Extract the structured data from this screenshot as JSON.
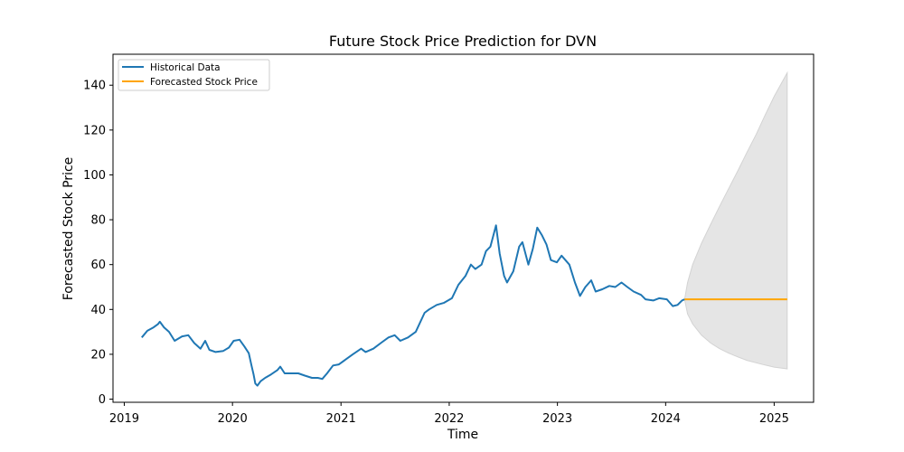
{
  "chart_data": {
    "type": "line",
    "title": "Future Stock Price Prediction for DVN",
    "xlabel": "Time",
    "ylabel": "Forecasted Stock Price",
    "xlim": [
      "2018-11-24",
      "2025-05-14"
    ],
    "ylim": [
      -1.4,
      153.8
    ],
    "x_ticks": [
      "2019",
      "2020",
      "2021",
      "2022",
      "2023",
      "2024",
      "2025"
    ],
    "y_ticks": [
      0,
      20,
      40,
      60,
      80,
      100,
      120,
      140
    ],
    "grid": false,
    "legend_position": "top-left",
    "series": [
      {
        "name": "Historical Data",
        "color": "#1f77b4",
        "points": [
          [
            "2019-03-01",
            27.5
          ],
          [
            "2019-03-20",
            30.5
          ],
          [
            "2019-04-10",
            32
          ],
          [
            "2019-04-25",
            33.5
          ],
          [
            "2019-05-01",
            34.5
          ],
          [
            "2019-05-15",
            32
          ],
          [
            "2019-06-01",
            30
          ],
          [
            "2019-06-20",
            26
          ],
          [
            "2019-07-15",
            28
          ],
          [
            "2019-08-05",
            28.5
          ],
          [
            "2019-08-25",
            25
          ],
          [
            "2019-09-15",
            22.5
          ],
          [
            "2019-10-01",
            26
          ],
          [
            "2019-10-15",
            22
          ],
          [
            "2019-11-05",
            21
          ],
          [
            "2019-12-01",
            21.5
          ],
          [
            "2019-12-20",
            23
          ],
          [
            "2020-01-05",
            26
          ],
          [
            "2020-01-25",
            26.5
          ],
          [
            "2020-02-10",
            23.5
          ],
          [
            "2020-02-25",
            20.5
          ],
          [
            "2020-03-05",
            15
          ],
          [
            "2020-03-12",
            11
          ],
          [
            "2020-03-18",
            7
          ],
          [
            "2020-03-25",
            6
          ],
          [
            "2020-04-05",
            8
          ],
          [
            "2020-04-20",
            9.5
          ],
          [
            "2020-05-10",
            11
          ],
          [
            "2020-06-01",
            13
          ],
          [
            "2020-06-10",
            14.5
          ],
          [
            "2020-06-25",
            11.5
          ],
          [
            "2020-07-20",
            11.5
          ],
          [
            "2020-08-10",
            11.5
          ],
          [
            "2020-09-01",
            10.5
          ],
          [
            "2020-09-25",
            9.5
          ],
          [
            "2020-10-15",
            9.5
          ],
          [
            "2020-10-30",
            9
          ],
          [
            "2020-11-15",
            11.5
          ],
          [
            "2020-12-05",
            15
          ],
          [
            "2020-12-25",
            15.5
          ],
          [
            "2021-01-15",
            17.5
          ],
          [
            "2021-02-10",
            20
          ],
          [
            "2021-03-10",
            22.5
          ],
          [
            "2021-03-25",
            21
          ],
          [
            "2021-04-20",
            22.5
          ],
          [
            "2021-05-15",
            25
          ],
          [
            "2021-06-10",
            27.5
          ],
          [
            "2021-07-01",
            28.5
          ],
          [
            "2021-07-20",
            26
          ],
          [
            "2021-08-15",
            27.5
          ],
          [
            "2021-09-10",
            30
          ],
          [
            "2021-10-10",
            38.5
          ],
          [
            "2021-10-25",
            40
          ],
          [
            "2021-11-20",
            42
          ],
          [
            "2021-12-15",
            43
          ],
          [
            "2022-01-10",
            45
          ],
          [
            "2022-02-01",
            51
          ],
          [
            "2022-02-25",
            55
          ],
          [
            "2022-03-15",
            60
          ],
          [
            "2022-03-30",
            58
          ],
          [
            "2022-04-20",
            60
          ],
          [
            "2022-05-05",
            66
          ],
          [
            "2022-05-20",
            68
          ],
          [
            "2022-06-01",
            74
          ],
          [
            "2022-06-08",
            77.5
          ],
          [
            "2022-06-20",
            65
          ],
          [
            "2022-07-05",
            55
          ],
          [
            "2022-07-15",
            52
          ],
          [
            "2022-08-05",
            57
          ],
          [
            "2022-08-25",
            68
          ],
          [
            "2022-09-05",
            70
          ],
          [
            "2022-09-25",
            60
          ],
          [
            "2022-10-10",
            67
          ],
          [
            "2022-10-25",
            76.5
          ],
          [
            "2022-11-10",
            73
          ],
          [
            "2022-11-25",
            69
          ],
          [
            "2022-12-10",
            62
          ],
          [
            "2022-12-30",
            61
          ],
          [
            "2023-01-15",
            64
          ],
          [
            "2023-02-10",
            60
          ],
          [
            "2023-03-01",
            52
          ],
          [
            "2023-03-18",
            46
          ],
          [
            "2023-04-05",
            50
          ],
          [
            "2023-04-25",
            53
          ],
          [
            "2023-05-10",
            48
          ],
          [
            "2023-06-01",
            49
          ],
          [
            "2023-06-25",
            50.5
          ],
          [
            "2023-07-15",
            50
          ],
          [
            "2023-08-05",
            52
          ],
          [
            "2023-08-25",
            50
          ],
          [
            "2023-09-15",
            48
          ],
          [
            "2023-10-10",
            46.5
          ],
          [
            "2023-10-25",
            44.5
          ],
          [
            "2023-11-20",
            44
          ],
          [
            "2023-12-10",
            45
          ],
          [
            "2024-01-05",
            44.5
          ],
          [
            "2024-01-25",
            41.5
          ],
          [
            "2024-02-10",
            42
          ],
          [
            "2024-02-25",
            44
          ],
          [
            "2024-03-05",
            44.5
          ]
        ]
      },
      {
        "name": "Forecasted Stock Price",
        "color": "#ffa500",
        "points": [
          [
            "2024-03-05",
            44.5
          ],
          [
            "2025-02-14",
            44.5
          ]
        ]
      }
    ],
    "confidence_band": {
      "color": "#d3d3d3",
      "lower": [
        [
          "2024-03-05",
          44.5
        ],
        [
          "2024-03-15",
          38
        ],
        [
          "2024-04-01",
          33.5
        ],
        [
          "2024-05-01",
          28.5
        ],
        [
          "2024-06-01",
          25
        ],
        [
          "2024-07-01",
          22.5
        ],
        [
          "2024-08-01",
          20.5
        ],
        [
          "2024-09-01",
          18.8
        ],
        [
          "2024-10-01",
          17.3
        ],
        [
          "2024-11-01",
          16.2
        ],
        [
          "2024-12-01",
          15.2
        ],
        [
          "2025-01-01",
          14.3
        ],
        [
          "2025-02-14",
          13.5
        ]
      ],
      "upper": [
        [
          "2024-03-05",
          44.5
        ],
        [
          "2024-03-15",
          52
        ],
        [
          "2024-04-01",
          60
        ],
        [
          "2024-05-01",
          69.5
        ],
        [
          "2024-06-01",
          78
        ],
        [
          "2024-07-01",
          86
        ],
        [
          "2024-08-01",
          94
        ],
        [
          "2024-09-01",
          102
        ],
        [
          "2024-10-01",
          110
        ],
        [
          "2024-11-01",
          118
        ],
        [
          "2024-12-01",
          126.5
        ],
        [
          "2025-01-01",
          135
        ],
        [
          "2025-02-14",
          145.5
        ]
      ]
    }
  }
}
